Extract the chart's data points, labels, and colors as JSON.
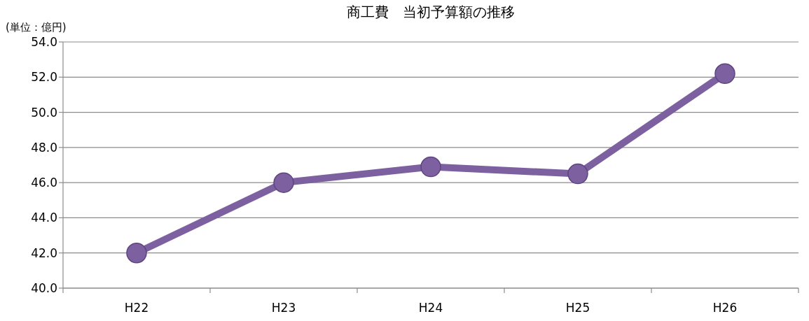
{
  "chart_data": {
    "type": "line",
    "title": "商工費　当初予算額の推移",
    "ylabel": "(単位：億円)",
    "categories": [
      "H22",
      "H23",
      "H24",
      "H25",
      "H26"
    ],
    "series": [
      {
        "color": "#7d60a0",
        "values": [
          42.0,
          46.0,
          46.9,
          46.5,
          52.2
        ]
      }
    ],
    "ylim": [
      40,
      54
    ],
    "yticks": [
      {
        "value": 40,
        "label": "40.0"
      },
      {
        "value": 42,
        "label": "42.0"
      },
      {
        "value": 44,
        "label": "44.0"
      },
      {
        "value": 46,
        "label": "46.0"
      },
      {
        "value": 48,
        "label": "48.0"
      },
      {
        "value": 50,
        "label": "50.0"
      },
      {
        "value": 52,
        "label": "52.0"
      },
      {
        "value": 54,
        "label": "54.0"
      }
    ],
    "grid": "y",
    "marker": "circle"
  }
}
